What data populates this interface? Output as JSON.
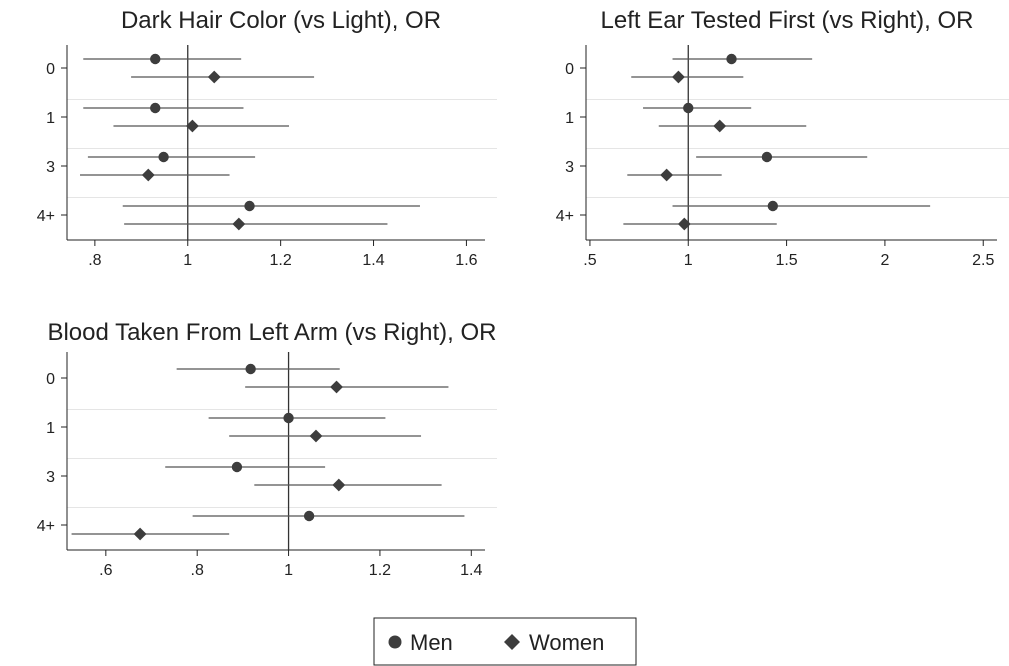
{
  "chart_data": [
    {
      "type": "scatter",
      "title": "Dark Hair Color (vs Light), OR",
      "categories": [
        "0",
        "1",
        "3",
        "4+"
      ],
      "xlim": [
        0.74,
        1.64
      ],
      "xticks": [
        {
          "v": 0.8,
          "label": ".8"
        },
        {
          "v": 1.0,
          "label": "1"
        },
        {
          "v": 1.2,
          "label": "1.2"
        },
        {
          "v": 1.4,
          "label": "1.4"
        },
        {
          "v": 1.6,
          "label": "1.6"
        }
      ],
      "reference_line": 1,
      "series": [
        {
          "name": "Men",
          "values": [
            {
              "category": "0",
              "estimate": 0.93,
              "ci": [
                0.775,
                1.115
              ]
            },
            {
              "category": "1",
              "estimate": 0.93,
              "ci": [
                0.775,
                1.12
              ]
            },
            {
              "category": "3",
              "estimate": 0.948,
              "ci": [
                0.785,
                1.145
              ]
            },
            {
              "category": "4+",
              "estimate": 1.133,
              "ci": [
                0.86,
                1.5
              ]
            }
          ]
        },
        {
          "name": "Women",
          "values": [
            {
              "category": "0",
              "estimate": 1.057,
              "ci": [
                0.878,
                1.272
              ]
            },
            {
              "category": "1",
              "estimate": 1.01,
              "ci": [
                0.84,
                1.218
              ]
            },
            {
              "category": "3",
              "estimate": 0.915,
              "ci": [
                0.768,
                1.09
              ]
            },
            {
              "category": "4+",
              "estimate": 1.11,
              "ci": [
                0.863,
                1.43
              ]
            }
          ]
        }
      ]
    },
    {
      "type": "scatter",
      "title": "Left Ear Tested First (vs Right), OR",
      "categories": [
        "0",
        "1",
        "3",
        "4+"
      ],
      "xlim": [
        0.48,
        2.57
      ],
      "xticks": [
        {
          "v": 0.5,
          "label": ".5"
        },
        {
          "v": 1.0,
          "label": "1"
        },
        {
          "v": 1.5,
          "label": "1.5"
        },
        {
          "v": 2.0,
          "label": "2"
        },
        {
          "v": 2.5,
          "label": "2.5"
        }
      ],
      "reference_line": 1,
      "series": [
        {
          "name": "Men",
          "values": [
            {
              "category": "0",
              "estimate": 1.22,
              "ci": [
                0.92,
                1.63
              ]
            },
            {
              "category": "1",
              "estimate": 1.0,
              "ci": [
                0.77,
                1.32
              ]
            },
            {
              "category": "3",
              "estimate": 1.4,
              "ci": [
                1.04,
                1.91
              ]
            },
            {
              "category": "4+",
              "estimate": 1.43,
              "ci": [
                0.92,
                2.23
              ]
            }
          ]
        },
        {
          "name": "Women",
          "values": [
            {
              "category": "0",
              "estimate": 0.95,
              "ci": [
                0.71,
                1.28
              ]
            },
            {
              "category": "1",
              "estimate": 1.16,
              "ci": [
                0.85,
                1.6
              ]
            },
            {
              "category": "3",
              "estimate": 0.89,
              "ci": [
                0.69,
                1.17
              ]
            },
            {
              "category": "4+",
              "estimate": 0.98,
              "ci": [
                0.67,
                1.45
              ]
            }
          ]
        }
      ]
    },
    {
      "type": "scatter",
      "title": "Blood Taken From Left Arm (vs Right), OR",
      "categories": [
        "0",
        "1",
        "3",
        "4+"
      ],
      "xlim": [
        0.515,
        1.43
      ],
      "xticks": [
        {
          "v": 0.6,
          "label": ".6"
        },
        {
          "v": 0.8,
          "label": ".8"
        },
        {
          "v": 1.0,
          "label": "1"
        },
        {
          "v": 1.2,
          "label": "1.2"
        },
        {
          "v": 1.4,
          "label": "1.4"
        }
      ],
      "reference_line": 1,
      "series": [
        {
          "name": "Men",
          "values": [
            {
              "category": "0",
              "estimate": 0.917,
              "ci": [
                0.755,
                1.112
              ]
            },
            {
              "category": "1",
              "estimate": 1.0,
              "ci": [
                0.825,
                1.212
              ]
            },
            {
              "category": "3",
              "estimate": 0.887,
              "ci": [
                0.73,
                1.08
              ]
            },
            {
              "category": "4+",
              "estimate": 1.045,
              "ci": [
                0.79,
                1.385
              ]
            }
          ]
        },
        {
          "name": "Women",
          "values": [
            {
              "category": "0",
              "estimate": 1.105,
              "ci": [
                0.905,
                1.35
              ]
            },
            {
              "category": "1",
              "estimate": 1.06,
              "ci": [
                0.87,
                1.29
              ]
            },
            {
              "category": "3",
              "estimate": 1.11,
              "ci": [
                0.925,
                1.335
              ]
            },
            {
              "category": "4+",
              "estimate": 0.675,
              "ci": [
                0.525,
                0.87
              ]
            }
          ]
        }
      ]
    }
  ],
  "legend": {
    "items": [
      {
        "label": "Men",
        "marker": "circle"
      },
      {
        "label": "Women",
        "marker": "diamond"
      }
    ]
  },
  "colors": {
    "marker": "#3d3d3d",
    "ci_line": "#555555",
    "axis": "#222222",
    "band_divider": "#e5e5e5",
    "text": "#222222"
  }
}
